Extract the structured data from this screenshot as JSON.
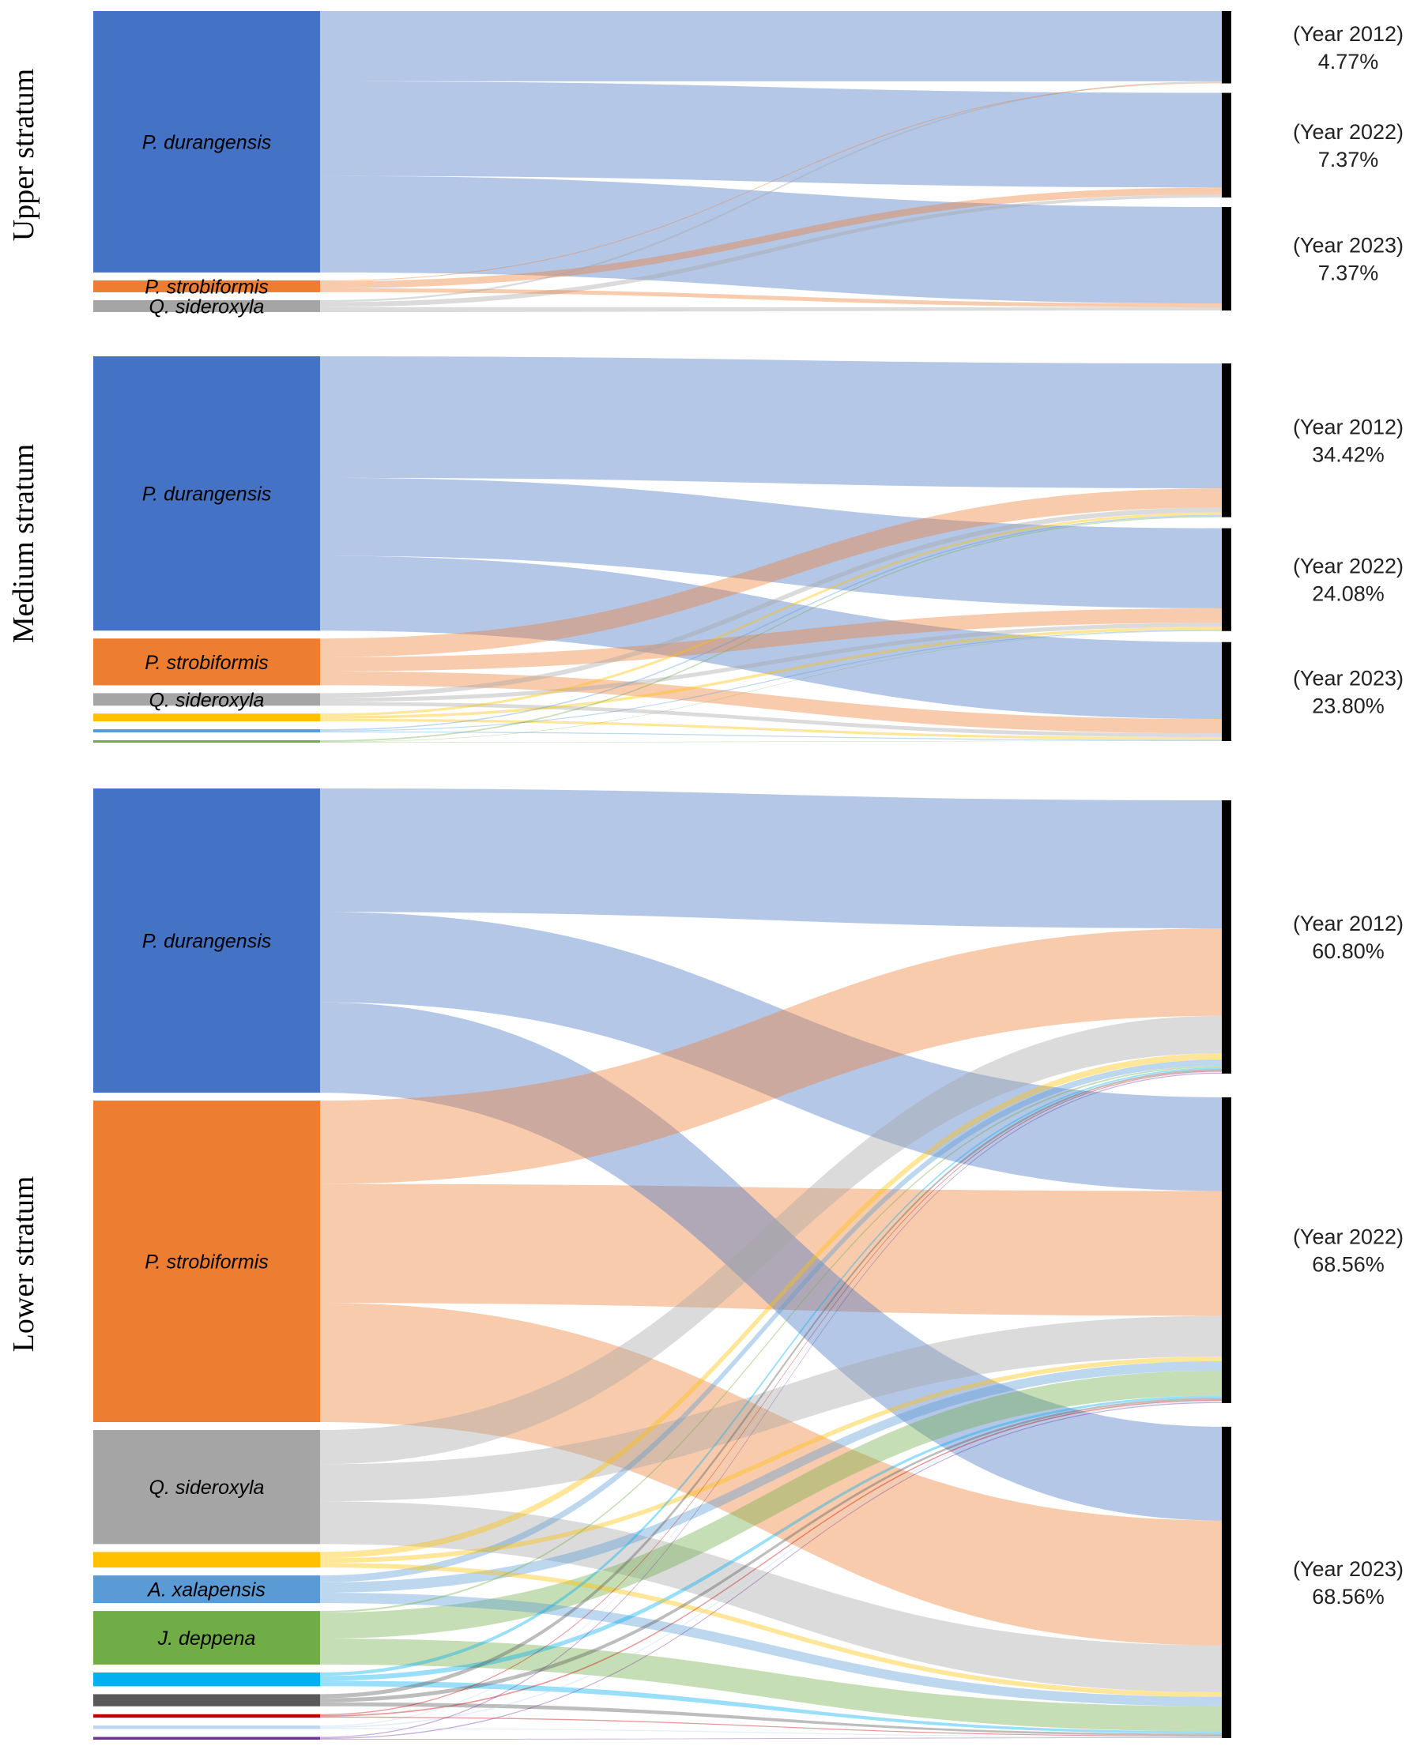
{
  "colors": {
    "P. durangensis": "#4472C4",
    "P. strobiformis": "#ED7D31",
    "Q. sideroxyla": "#A5A5A5",
    "yellow": "#FFC000",
    "A. xalapensis": "#5B9BD5",
    "J. deppena": "#70AD47",
    "cyan": "#00B0F0",
    "darkgray": "#595959",
    "red": "#C00000",
    "lightblue": "#BDD7EE",
    "purple": "#7030A0",
    "blue2": "#4472C4",
    "green2": "#70AD47",
    "bar": "#000000"
  },
  "chart_data": [
    {
      "type": "sankey",
      "stratum": "Upper stratum",
      "sources": [
        {
          "name": "P. durangensis",
          "label": "P. durangensis",
          "value": 85.6,
          "color_key": "P. durangensis"
        },
        {
          "name": "P. strobiformis",
          "label": "P. strobiformis",
          "value": 3.9,
          "color_key": "P. strobiformis"
        },
        {
          "name": "Q. sideroxyla",
          "label": "Q. sideroxyla",
          "value": 3.9,
          "color_key": "Q. sideroxyla"
        }
      ],
      "targets": [
        {
          "year": "(Year 2012)",
          "percent": "4.77%",
          "flows": [
            [
              "P. durangensis",
              23.0
            ],
            [
              "Q. sideroxyla",
              0.4
            ],
            [
              "P. strobiformis",
              0.3
            ]
          ]
        },
        {
          "year": "(Year 2022)",
          "percent": "7.37%",
          "flows": [
            [
              "P. durangensis",
              31.0
            ],
            [
              "P. strobiformis",
              2.3
            ],
            [
              "Q. sideroxyla",
              1.0
            ]
          ]
        },
        {
          "year": "(Year 2023)",
          "percent": "7.37%",
          "flows": [
            [
              "P. durangensis",
              31.6
            ],
            [
              "P. strobiformis",
              1.3
            ],
            [
              "Q. sideroxyla",
              1.0
            ]
          ]
        }
      ]
    },
    {
      "type": "sankey",
      "stratum": "Medium stratum",
      "sources": [
        {
          "name": "P. durangensis",
          "label": "P. durangensis",
          "value": 88.0,
          "color_key": "P. durangensis"
        },
        {
          "name": "P. strobiformis",
          "label": "P. strobiformis",
          "value": 15.0,
          "color_key": "P. strobiformis"
        },
        {
          "name": "Q. sideroxyla",
          "label": "Q. sideroxyla",
          "value": 4.0,
          "color_key": "Q. sideroxyla"
        },
        {
          "name": "yellow",
          "label": "",
          "value": 2.5,
          "color_key": "yellow"
        },
        {
          "name": "A. xalapensis",
          "label": "",
          "value": 1.0,
          "color_key": "A. xalapensis"
        },
        {
          "name": "J. deppena",
          "label": "",
          "value": 0.5,
          "color_key": "J. deppena"
        }
      ],
      "targets": [
        {
          "year": "(Year 2012)",
          "percent": "34.42%",
          "flows": [
            [
              "P. durangensis",
              39.0
            ],
            [
              "P. strobiformis",
              6.0
            ],
            [
              "Q. sideroxyla",
              1.5
            ],
            [
              "yellow",
              0.8
            ],
            [
              "A. xalapensis",
              0.4
            ],
            [
              "J. deppena",
              0.3
            ]
          ]
        },
        {
          "year": "(Year 2022)",
          "percent": "24.08%",
          "flows": [
            [
              "P. durangensis",
              25.0
            ],
            [
              "P. strobiformis",
              4.5
            ],
            [
              "Q. sideroxyla",
              1.3
            ],
            [
              "yellow",
              0.9
            ],
            [
              "A. xalapensis",
              0.3
            ],
            [
              "J. deppena",
              0.1
            ]
          ]
        },
        {
          "year": "(Year 2023)",
          "percent": "23.80%",
          "flows": [
            [
              "P. durangensis",
              24.0
            ],
            [
              "P. strobiformis",
              4.5
            ],
            [
              "Q. sideroxyla",
              1.2
            ],
            [
              "yellow",
              0.8
            ],
            [
              "A. xalapensis",
              0.3
            ],
            [
              "J. deppena",
              0.1
            ]
          ]
        }
      ]
    },
    {
      "type": "sankey",
      "stratum": "Lower stratum",
      "sources": [
        {
          "name": "P. durangensis",
          "label": "P. durangensis",
          "value": 88.0,
          "color_key": "P. durangensis"
        },
        {
          "name": "P. strobiformis",
          "label": "P. strobiformis",
          "value": 93.0,
          "color_key": "P. strobiformis"
        },
        {
          "name": "Q. sideroxyla",
          "label": "Q. sideroxyla",
          "value": 33.0,
          "color_key": "Q. sideroxyla"
        },
        {
          "name": "yellow",
          "label": "",
          "value": 4.5,
          "color_key": "yellow"
        },
        {
          "name": "A. xalapensis",
          "label": "A. xalapensis",
          "value": 8.0,
          "color_key": "A. xalapensis"
        },
        {
          "name": "J. deppena",
          "label": "J. deppena",
          "value": 15.5,
          "color_key": "J. deppena"
        },
        {
          "name": "cyan",
          "label": "",
          "value": 4.0,
          "color_key": "cyan"
        },
        {
          "name": "darkgray",
          "label": "",
          "value": 3.5,
          "color_key": "darkgray"
        },
        {
          "name": "red",
          "label": "",
          "value": 1.0,
          "color_key": "red"
        },
        {
          "name": "lightblue",
          "label": "",
          "value": 1.0,
          "color_key": "lightblue"
        },
        {
          "name": "purple",
          "label": "",
          "value": 0.8,
          "color_key": "purple"
        }
      ],
      "targets": [
        {
          "year": "(Year 2012)",
          "percent": "60.80%",
          "flows": [
            [
              "P. durangensis",
              41.0
            ],
            [
              "P. strobiformis",
              28.0
            ],
            [
              "Q. sideroxyla",
              12.0
            ],
            [
              "yellow",
              2.0
            ],
            [
              "A. xalapensis",
              2.0
            ],
            [
              "J. deppena",
              0.5
            ],
            [
              "cyan",
              0.5
            ],
            [
              "darkgray",
              0.6
            ],
            [
              "red",
              0.3
            ],
            [
              "lightblue",
              0.3
            ],
            [
              "purple",
              0.3
            ]
          ]
        },
        {
          "year": "(Year 2022)",
          "percent": "68.56%",
          "flows": [
            [
              "P. durangensis",
              30.0
            ],
            [
              "P. strobiformis",
              40.0
            ],
            [
              "Q. sideroxyla",
              13.0
            ],
            [
              "yellow",
              1.5
            ],
            [
              "A. xalapensis",
              3.0
            ],
            [
              "J. deppena",
              8.0
            ],
            [
              "cyan",
              0.7
            ],
            [
              "darkgray",
              0.6
            ],
            [
              "red",
              0.4
            ],
            [
              "lightblue",
              0.4
            ],
            [
              "purple",
              0.3
            ]
          ]
        },
        {
          "year": "(Year 2023)",
          "percent": "68.56%",
          "flows": [
            [
              "P. durangensis",
              30.0
            ],
            [
              "P. strobiformis",
              40.0
            ],
            [
              "Q. sideroxyla",
              15.0
            ],
            [
              "yellow",
              1.5
            ],
            [
              "A. xalapensis",
              3.0
            ],
            [
              "J. deppena",
              8.0
            ],
            [
              "cyan",
              0.8
            ],
            [
              "darkgray",
              0.6
            ],
            [
              "red",
              0.3
            ],
            [
              "lightblue",
              0.3
            ],
            [
              "purple",
              0.2
            ]
          ]
        }
      ]
    }
  ]
}
